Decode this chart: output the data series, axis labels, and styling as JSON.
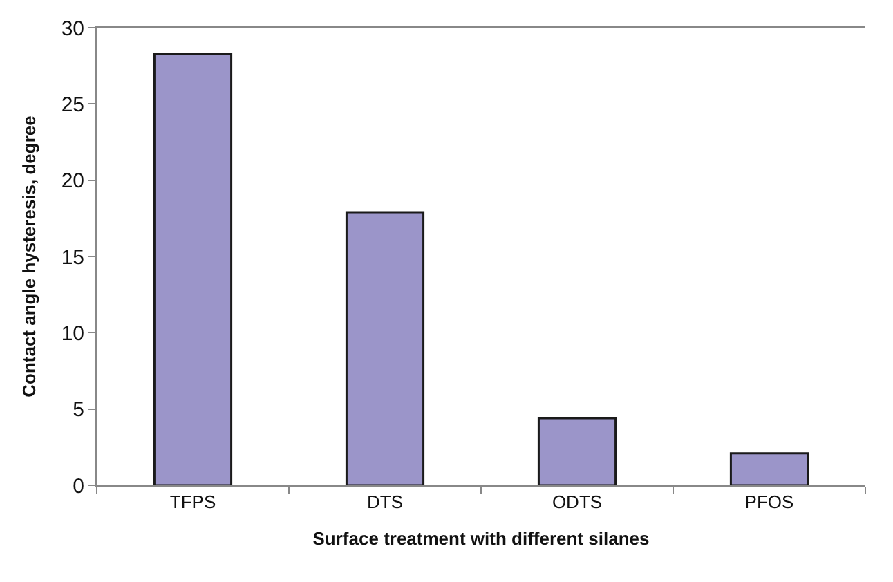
{
  "chart_data": {
    "type": "bar",
    "xlabel": "Surface treatment with different silanes",
    "ylabel": "Contact angle hysteresis, degree",
    "categories": [
      "TFPS",
      "DTS",
      "ODTS",
      "PFOS"
    ],
    "values": [
      28.3,
      17.9,
      4.4,
      2.1
    ],
    "color": "#9b95c9",
    "ylim": [
      0,
      30
    ],
    "yticks": [
      0,
      5,
      10,
      15,
      20,
      25,
      30
    ]
  }
}
